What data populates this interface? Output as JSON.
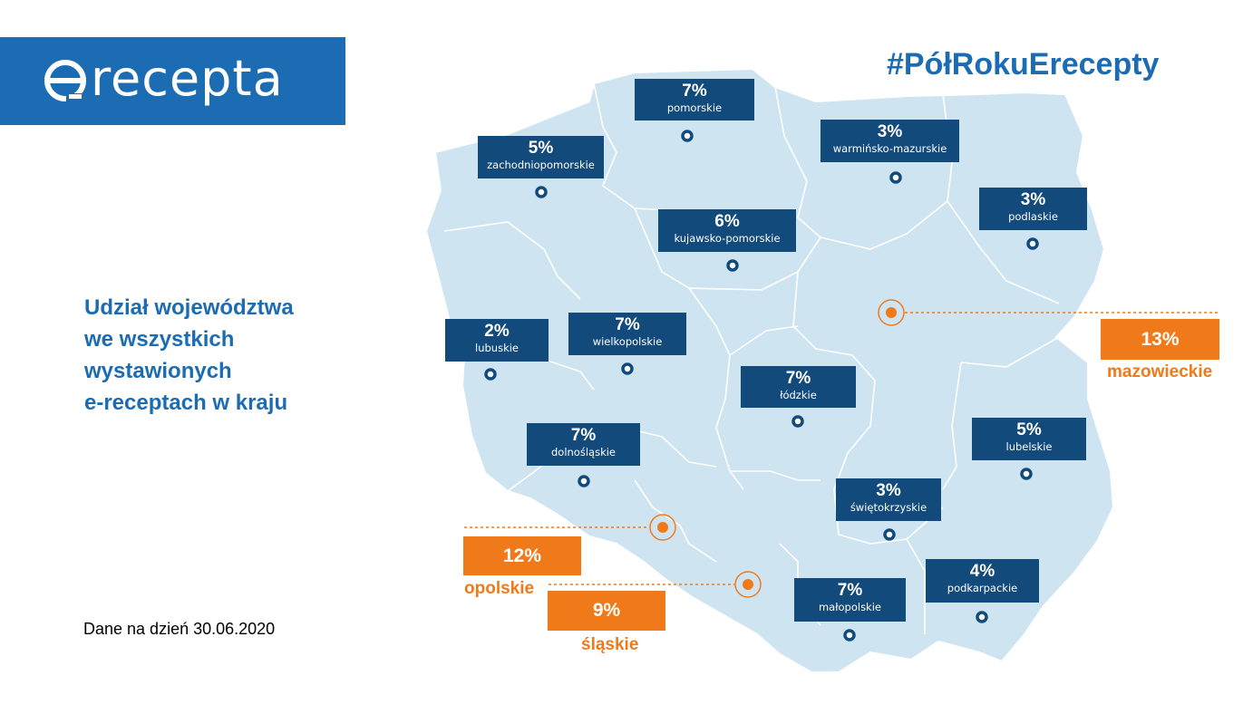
{
  "brand": {
    "logo_text": "recepta",
    "hashtag": "#PółRokuErecepty"
  },
  "colors": {
    "brand_blue": "#1c6cb4",
    "label_navy": "#124a7c",
    "highlight_orange": "#f07a1a",
    "map_fill": "#cfe4f1"
  },
  "headline": [
    "Udział województwa",
    "we wszystkich",
    "wystawionych",
    "e-receptach w kraju"
  ],
  "footnote": "Dane na dzień 30.06.2020",
  "regions": [
    {
      "name": "pomorskie",
      "share": "7%"
    },
    {
      "name": "zachodniopomorskie",
      "share": "5%"
    },
    {
      "name": "warmińsko-mazurskie",
      "share": "3%"
    },
    {
      "name": "podlaskie",
      "share": "3%"
    },
    {
      "name": "kujawsko-pomorskie",
      "share": "6%"
    },
    {
      "name": "lubuskie",
      "share": "2%"
    },
    {
      "name": "wielkopolskie",
      "share": "7%"
    },
    {
      "name": "łódzkie",
      "share": "7%"
    },
    {
      "name": "dolnośląskie",
      "share": "7%"
    },
    {
      "name": "lubelskie",
      "share": "5%"
    },
    {
      "name": "świętokrzyskie",
      "share": "3%"
    },
    {
      "name": "podkarpackie",
      "share": "4%"
    },
    {
      "name": "małopolskie",
      "share": "7%"
    }
  ],
  "highlighted": [
    {
      "name": "mazowieckie",
      "share": "13%"
    },
    {
      "name": "opolskie",
      "share": "12%"
    },
    {
      "name": "śląskie",
      "share": "9%"
    }
  ]
}
